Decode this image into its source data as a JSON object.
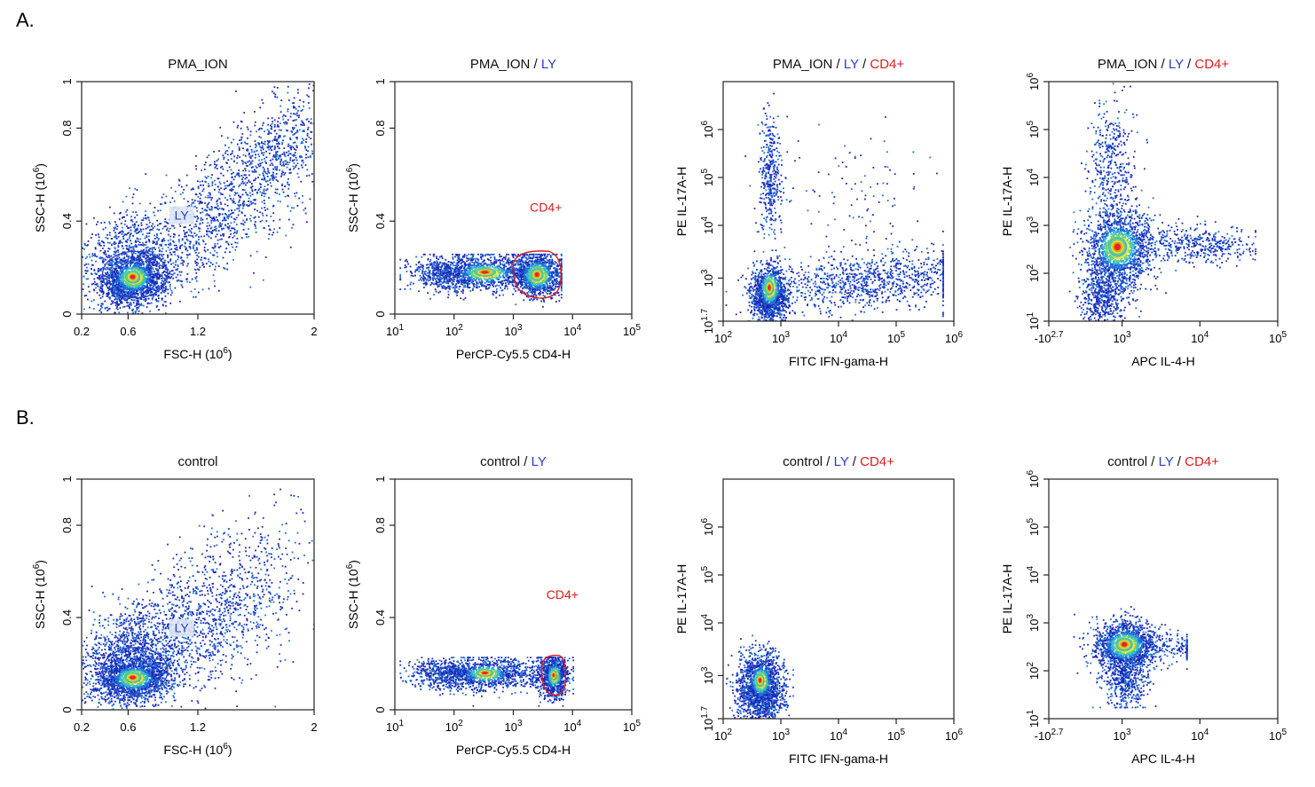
{
  "colors": {
    "blue": "#2a3fc0",
    "red": "#e01b1b",
    "density": [
      "#1a2ab8",
      "#1f6fd6",
      "#2fb8d8",
      "#6fd26a",
      "#e8e43a",
      "#f08a1c",
      "#e8121a"
    ]
  },
  "panels": [
    {
      "letter": "A."
    },
    {
      "letter": "B."
    }
  ],
  "chart_data": [
    {
      "panel": "A.",
      "type": "scatter",
      "title": [
        "PMA_ION"
      ],
      "xlabel": "FSC-H  (10^6)",
      "ylabel": "SSC-H  (10^6)",
      "x_ticks": [
        "0.2",
        "0.6",
        "1.2",
        "2"
      ],
      "y_ticks": [
        "0",
        "0.4",
        "0.8",
        "1"
      ],
      "xlim": [
        0.2,
        2.0
      ],
      "ylim": [
        0,
        1.0
      ],
      "gates": [
        {
          "label": "LY",
          "shape": "ellipse",
          "color": "blue"
        }
      ],
      "populations": [
        {
          "center": [
            0.6,
            0.17
          ],
          "note": "lymphocyte cluster (peak density)"
        },
        {
          "center": [
            1.4,
            0.55
          ],
          "note": "diffuse diagonal spread to (2.0, 0.95)"
        }
      ]
    },
    {
      "panel": "A.",
      "type": "scatter",
      "title": [
        "PMA_ION",
        "LY"
      ],
      "xlabel": "PerCP-Cy5.5 CD4-H",
      "ylabel": "SSC-H  (10^6)",
      "x_ticks": [
        "10^1",
        "10^2",
        "10^3",
        "10^4",
        "10^5"
      ],
      "y_ticks": [
        "0",
        "0.4",
        "0.8",
        "1"
      ],
      "x_scale": "log",
      "xlim": [
        10,
        100000
      ],
      "ylim": [
        0,
        1.0
      ],
      "gates": [
        {
          "label": "CD4+",
          "shape": "polygon",
          "color": "red"
        }
      ],
      "populations": [
        {
          "center": [
            250,
            0.18
          ],
          "note": "CD4- band"
        },
        {
          "center": [
            2000,
            0.17
          ],
          "note": "CD4+ population (peak density)"
        }
      ]
    },
    {
      "panel": "A.",
      "type": "scatter",
      "title": [
        "PMA_ION",
        "LY",
        "CD4+"
      ],
      "xlabel": "FITC IFN-gama-H",
      "ylabel": "PE IL-17A-H",
      "x_ticks": [
        "10^2",
        "10^3",
        "10^4",
        "10^5",
        "10^6"
      ],
      "y_ticks": [
        "10^1.7",
        "10^3",
        "10^4",
        "10^5",
        "10^6"
      ],
      "x_scale": "log",
      "y_scale": "log",
      "xlim": [
        100,
        1000000
      ],
      "ylim": [
        10,
        1000000
      ],
      "populations": [
        {
          "center": [
            600,
            120
          ],
          "note": "double-negative cluster (peak density)"
        },
        {
          "center": [
            650,
            20000
          ],
          "note": "IL-17A+ column"
        },
        {
          "center": [
            20000,
            200
          ],
          "note": "IFN-gamma+ horizontal smear"
        }
      ]
    },
    {
      "panel": "A.",
      "type": "scatter",
      "title": [
        "PMA_ION",
        "LY",
        "CD4+"
      ],
      "xlabel": "APC IL-4-H",
      "ylabel": "PE IL-17A-H",
      "x_ticks": [
        "-10^2.7",
        "10^3",
        "10^4",
        "10^5"
      ],
      "y_ticks": [
        "10^1",
        "10^2",
        "10^3",
        "10^4",
        "10^5",
        "10^6"
      ],
      "x_scale": "biexponential",
      "y_scale": "log",
      "ylim": [
        10,
        1000000
      ],
      "populations": [
        {
          "center": [
            450,
            250
          ],
          "note": "main cluster (peak density)"
        },
        {
          "center": [
            400,
            20000
          ],
          "note": "IL-17A+ column"
        },
        {
          "center": [
            4000,
            250
          ],
          "note": "horizontal tail to 3x10^4"
        }
      ]
    },
    {
      "panel": "B.",
      "type": "scatter",
      "title": [
        "control"
      ],
      "xlabel": "FSC-H  (10^6)",
      "ylabel": "SSC-H  (10^6)",
      "x_ticks": [
        "0.2",
        "0.6",
        "1.2",
        "2"
      ],
      "y_ticks": [
        "0",
        "0.4",
        "0.8",
        "1"
      ],
      "xlim": [
        0.2,
        2.0
      ],
      "ylim": [
        0,
        1.0
      ],
      "gates": [
        {
          "label": "LY",
          "shape": "ellipse",
          "color": "blue"
        }
      ],
      "populations": [
        {
          "center": [
            0.6,
            0.15
          ],
          "note": "lymphocyte cluster (peak density)"
        },
        {
          "center": [
            1.1,
            0.5
          ],
          "note": "diffuse spread"
        }
      ]
    },
    {
      "panel": "B.",
      "type": "scatter",
      "title": [
        "control",
        "LY"
      ],
      "xlabel": "PerCP-Cy5.5 CD4-H",
      "ylabel": "SSC-H  (10^6)",
      "x_ticks": [
        "10^1",
        "10^2",
        "10^3",
        "10^4",
        "10^5"
      ],
      "y_ticks": [
        "0",
        "0.4",
        "0.8",
        "1"
      ],
      "x_scale": "log",
      "xlim": [
        10,
        100000
      ],
      "ylim": [
        0,
        1.0
      ],
      "gates": [
        {
          "label": "CD4+",
          "shape": "polygon",
          "color": "red"
        }
      ],
      "populations": [
        {
          "center": [
            250,
            0.16
          ],
          "note": "CD4- band"
        },
        {
          "center": [
            4000,
            0.14
          ],
          "note": "CD4+ population (peak density)"
        }
      ]
    },
    {
      "panel": "B.",
      "type": "scatter",
      "title": [
        "control",
        "LY",
        "CD4+"
      ],
      "xlabel": "FITC IFN-gama-H",
      "ylabel": "PE IL-17A-H",
      "x_ticks": [
        "10^2",
        "10^3",
        "10^4",
        "10^5",
        "10^6"
      ],
      "y_ticks": [
        "10^1.7",
        "10^3",
        "10^4",
        "10^5",
        "10^6"
      ],
      "x_scale": "log",
      "y_scale": "log",
      "xlim": [
        100,
        1000000
      ],
      "ylim": [
        10,
        1000000
      ],
      "populations": [
        {
          "center": [
            600,
            150
          ],
          "note": "single double-negative cluster (peak density)"
        }
      ]
    },
    {
      "panel": "B.",
      "type": "scatter",
      "title": [
        "control",
        "LY",
        "CD4+"
      ],
      "xlabel": "APC IL-4-H",
      "ylabel": "PE IL-17A-H",
      "x_ticks": [
        "-10^2.7",
        "10^3",
        "10^4",
        "10^5"
      ],
      "y_ticks": [
        "10^1",
        "10^2",
        "10^3",
        "10^4",
        "10^5",
        "10^6"
      ],
      "x_scale": "biexponential",
      "y_scale": "log",
      "ylim": [
        10,
        1000000
      ],
      "populations": [
        {
          "center": [
            550,
            250
          ],
          "note": "single main cluster (peak density)"
        }
      ]
    }
  ]
}
